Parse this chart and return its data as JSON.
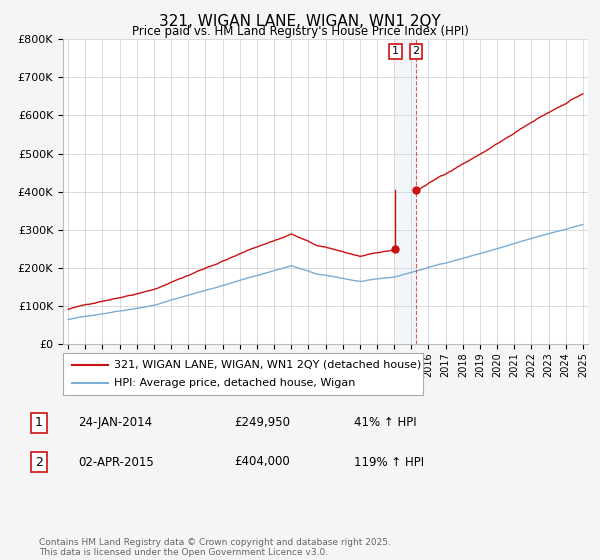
{
  "title": "321, WIGAN LANE, WIGAN, WN1 2QY",
  "subtitle": "Price paid vs. HM Land Registry's House Price Index (HPI)",
  "legend_line1": "321, WIGAN LANE, WIGAN, WN1 2QY (detached house)",
  "legend_line2": "HPI: Average price, detached house, Wigan",
  "transaction1_label": "1",
  "transaction1_date": "24-JAN-2014",
  "transaction1_price": 249950,
  "transaction1_price_str": "£249,950",
  "transaction1_hpi": "41% ↑ HPI",
  "transaction1_x": 2014.07,
  "transaction2_label": "2",
  "transaction2_date": "02-APR-2015",
  "transaction2_price": 404000,
  "transaction2_price_str": "£404,000",
  "transaction2_hpi": "119% ↑ HPI",
  "transaction2_x": 2015.27,
  "footer": "Contains HM Land Registry data © Crown copyright and database right 2025.\nThis data is licensed under the Open Government Licence v3.0.",
  "hpi_color": "#7aaed6",
  "price_color": "#cc1111",
  "background_color": "#f5f5f5",
  "plot_bg_color": "#ffffff",
  "grid_color": "#cccccc",
  "ylim": [
    0,
    800000
  ],
  "yticks": [
    0,
    100000,
    200000,
    300000,
    400000,
    500000,
    600000,
    700000,
    800000
  ],
  "xstart_year": 1995,
  "xend_year": 2025,
  "vertical_band_color": "#ccddf0"
}
